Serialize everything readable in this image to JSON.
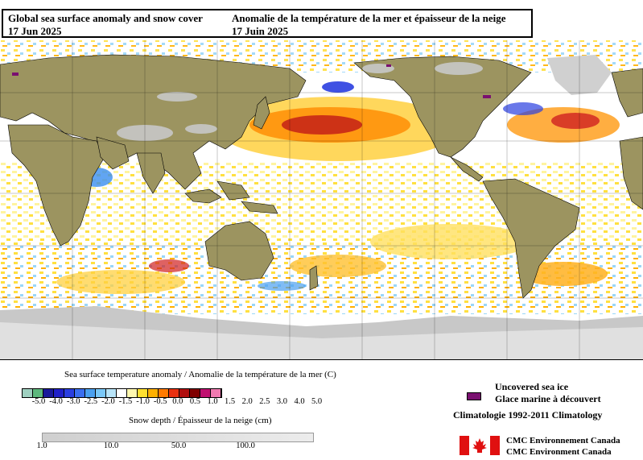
{
  "title": {
    "en_line1": "Global sea surface anomaly and snow cover",
    "en_line2": "17 Jun 2025",
    "fr_line1": "Anomalie de la température de la mer et épaisseur de la neige",
    "fr_line2": "17 Juin 2025"
  },
  "legend": {
    "sst_title": "Sea surface temperature anomaly / Anomalie de la température de la mer (C)",
    "sst_ticks": [
      "-5.0",
      "-4.0",
      "-3.0",
      "-2.5",
      "-2.0",
      "-1.5",
      "-1.0",
      "-0.5",
      "0.0",
      "0.5",
      "1.0",
      "1.5",
      "2.0",
      "2.5",
      "3.0",
      "4.0",
      "5.0"
    ],
    "sst_colors": [
      "#9fd0c0",
      "#5cb87c",
      "#1a1a9a",
      "#2020c8",
      "#2a3ee0",
      "#3a6ef0",
      "#4aa0f0",
      "#7ac8f8",
      "#b8e4f8",
      "#ffffff",
      "#fff8b0",
      "#ffe030",
      "#ffb000",
      "#ff7a00",
      "#e83010",
      "#b01010",
      "#800000",
      "#c01070",
      "#f07ab0"
    ],
    "snow_title": "Snow depth / Épaisseur de la neige (cm)",
    "snow_ticks": [
      "1.0",
      "10.0",
      "50.0",
      "100.0"
    ],
    "ice_en": "Uncovered sea ice",
    "ice_fr": "Glace marine à découvert",
    "ice_color": "#7a1070",
    "climatology": "Climatologie 1992-2011 Climatology",
    "credit_fr": "CMC Environnement Canada",
    "credit_en": "CMC Environment Canada"
  },
  "map": {
    "land_color": "#9c9460",
    "ocean_color": "#ffffff",
    "snow_color": "#c8c8c8"
  }
}
